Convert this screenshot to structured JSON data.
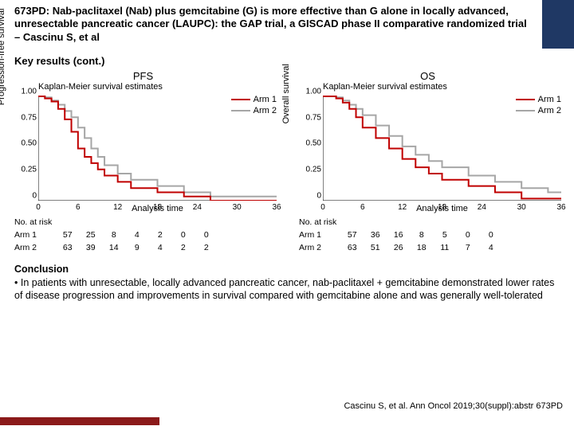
{
  "header_title": "673PD: Nab-paclitaxel (Nab) plus gemcitabine (G) is more effective than G alone in locally advanced, unresectable pancreatic cancer (LAUPC): the GAP trial, a GISCAD phase II comparative randomized trial – Cascinu S, et al",
  "section_title": "Key results (cont.)",
  "charts": {
    "pfs": {
      "title": "PFS",
      "km_title": "Kaplan-Meier survival estimates",
      "ylabel": "Progression-free survival",
      "xlabel": "Analysis time",
      "xlim": [
        0,
        36
      ],
      "ylim": [
        0,
        1.0
      ],
      "yticks": [
        0,
        0.25,
        0.5,
        0.75,
        1.0
      ],
      "xticks": [
        0,
        6,
        12,
        18,
        24,
        30,
        36
      ],
      "arm1_color": "#c00000",
      "arm2_color": "#a6a6a6",
      "arm1_label": "Arm 1",
      "arm2_label": "Arm 2",
      "arm1": [
        [
          0,
          1.0
        ],
        [
          1,
          1.0
        ],
        [
          1,
          0.98
        ],
        [
          2,
          0.98
        ],
        [
          2,
          0.95
        ],
        [
          3,
          0.95
        ],
        [
          3,
          0.88
        ],
        [
          4,
          0.88
        ],
        [
          4,
          0.78
        ],
        [
          5,
          0.78
        ],
        [
          5,
          0.66
        ],
        [
          6,
          0.66
        ],
        [
          6,
          0.5
        ],
        [
          7,
          0.5
        ],
        [
          7,
          0.42
        ],
        [
          8,
          0.42
        ],
        [
          8,
          0.36
        ],
        [
          9,
          0.36
        ],
        [
          9,
          0.3
        ],
        [
          10,
          0.3
        ],
        [
          10,
          0.24
        ],
        [
          12,
          0.24
        ],
        [
          12,
          0.18
        ],
        [
          14,
          0.18
        ],
        [
          14,
          0.12
        ],
        [
          18,
          0.12
        ],
        [
          18,
          0.08
        ],
        [
          22,
          0.08
        ],
        [
          22,
          0.04
        ],
        [
          26,
          0.04
        ],
        [
          26,
          0.0
        ],
        [
          36,
          0.0
        ]
      ],
      "arm2": [
        [
          0,
          1.0
        ],
        [
          1,
          1.0
        ],
        [
          1,
          0.99
        ],
        [
          2,
          0.99
        ],
        [
          2,
          0.96
        ],
        [
          3,
          0.96
        ],
        [
          3,
          0.92
        ],
        [
          4,
          0.92
        ],
        [
          4,
          0.86
        ],
        [
          5,
          0.86
        ],
        [
          5,
          0.8
        ],
        [
          6,
          0.8
        ],
        [
          6,
          0.7
        ],
        [
          7,
          0.7
        ],
        [
          7,
          0.6
        ],
        [
          8,
          0.6
        ],
        [
          8,
          0.5
        ],
        [
          9,
          0.5
        ],
        [
          9,
          0.42
        ],
        [
          10,
          0.42
        ],
        [
          10,
          0.34
        ],
        [
          12,
          0.34
        ],
        [
          12,
          0.26
        ],
        [
          14,
          0.26
        ],
        [
          14,
          0.2
        ],
        [
          18,
          0.2
        ],
        [
          18,
          0.14
        ],
        [
          22,
          0.14
        ],
        [
          22,
          0.08
        ],
        [
          26,
          0.08
        ],
        [
          26,
          0.04
        ],
        [
          30,
          0.04
        ],
        [
          30,
          0.04
        ],
        [
          36,
          0.04
        ]
      ],
      "risk": {
        "label": "No. at risk",
        "arm1_label": "Arm 1",
        "arm2_label": "Arm 2",
        "times": [
          0,
          6,
          12,
          18,
          24,
          30,
          36
        ],
        "arm1": [
          57,
          25,
          8,
          4,
          2,
          0,
          0
        ],
        "arm2": [
          63,
          39,
          14,
          9,
          4,
          2,
          2
        ]
      }
    },
    "os": {
      "title": "OS",
      "km_title": "Kaplan-Meier survival estimates",
      "ylabel": "Overall survival",
      "xlabel": "Analysis time",
      "xlim": [
        0,
        36
      ],
      "ylim": [
        0,
        1.0
      ],
      "yticks": [
        0,
        0.25,
        0.5,
        0.75,
        1.0
      ],
      "xticks": [
        0,
        6,
        12,
        18,
        24,
        30,
        36
      ],
      "arm1_color": "#c00000",
      "arm2_color": "#a6a6a6",
      "arm1_label": "Arm 1",
      "arm2_label": "Arm 2",
      "arm1": [
        [
          0,
          1.0
        ],
        [
          2,
          1.0
        ],
        [
          2,
          0.98
        ],
        [
          3,
          0.98
        ],
        [
          3,
          0.94
        ],
        [
          4,
          0.94
        ],
        [
          4,
          0.88
        ],
        [
          5,
          0.88
        ],
        [
          5,
          0.8
        ],
        [
          6,
          0.8
        ],
        [
          6,
          0.7
        ],
        [
          8,
          0.7
        ],
        [
          8,
          0.6
        ],
        [
          10,
          0.6
        ],
        [
          10,
          0.5
        ],
        [
          12,
          0.5
        ],
        [
          12,
          0.4
        ],
        [
          14,
          0.4
        ],
        [
          14,
          0.32
        ],
        [
          16,
          0.32
        ],
        [
          16,
          0.26
        ],
        [
          18,
          0.26
        ],
        [
          18,
          0.2
        ],
        [
          22,
          0.2
        ],
        [
          22,
          0.14
        ],
        [
          26,
          0.14
        ],
        [
          26,
          0.08
        ],
        [
          30,
          0.08
        ],
        [
          30,
          0.02
        ],
        [
          36,
          0.02
        ]
      ],
      "arm2": [
        [
          0,
          1.0
        ],
        [
          2,
          1.0
        ],
        [
          2,
          0.99
        ],
        [
          3,
          0.99
        ],
        [
          3,
          0.96
        ],
        [
          4,
          0.96
        ],
        [
          4,
          0.92
        ],
        [
          5,
          0.92
        ],
        [
          5,
          0.88
        ],
        [
          6,
          0.88
        ],
        [
          6,
          0.82
        ],
        [
          8,
          0.82
        ],
        [
          8,
          0.72
        ],
        [
          10,
          0.72
        ],
        [
          10,
          0.62
        ],
        [
          12,
          0.62
        ],
        [
          12,
          0.52
        ],
        [
          14,
          0.52
        ],
        [
          14,
          0.44
        ],
        [
          16,
          0.44
        ],
        [
          16,
          0.38
        ],
        [
          18,
          0.38
        ],
        [
          18,
          0.32
        ],
        [
          22,
          0.32
        ],
        [
          22,
          0.24
        ],
        [
          26,
          0.24
        ],
        [
          26,
          0.18
        ],
        [
          30,
          0.18
        ],
        [
          30,
          0.12
        ],
        [
          34,
          0.12
        ],
        [
          34,
          0.08
        ],
        [
          36,
          0.08
        ]
      ],
      "risk": {
        "label": "No. at risk",
        "arm1_label": "Arm 1",
        "arm2_label": "Arm 2",
        "times": [
          0,
          6,
          12,
          18,
          24,
          30,
          36
        ],
        "arm1": [
          57,
          36,
          16,
          8,
          5,
          0,
          0
        ],
        "arm2": [
          63,
          51,
          26,
          18,
          11,
          7,
          4
        ]
      }
    }
  },
  "conclusion_title": "Conclusion",
  "conclusion_bullet": "In patients with unresectable, locally advanced pancreatic cancer, nab-paclitaxel + gemcitabine demonstrated lower rates of disease progression and improvements in survival compared with gemcitabine alone and was generally well-tolerated",
  "citation": "Cascinu S, et al. Ann Oncol 2019;30(suppl):abstr 673PD",
  "colors": {
    "header_accent": "#1f3864",
    "footer_bar": "#8b1a1a"
  }
}
